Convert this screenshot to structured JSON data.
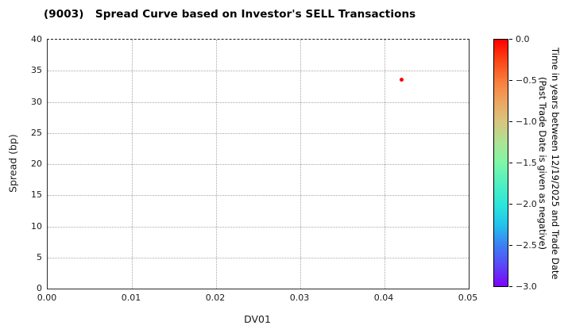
{
  "chart_data": {
    "type": "scatter",
    "title": "(9003)   Spread Curve based on Investor's SELL Transactions",
    "xlabel": "DV01",
    "ylabel": "Spread (bp)",
    "xlim": [
      0.0,
      0.05
    ],
    "ylim": [
      0,
      40
    ],
    "grid": true,
    "xticks": {
      "values": [
        0.0,
        0.01,
        0.02,
        0.03,
        0.04,
        0.05
      ],
      "labels": [
        "0.00",
        "0.01",
        "0.02",
        "0.03",
        "0.04",
        "0.05"
      ]
    },
    "yticks": {
      "values": [
        0,
        5,
        10,
        15,
        20,
        25,
        30,
        35,
        40
      ],
      "labels": [
        "0",
        "5",
        "10",
        "15",
        "20",
        "25",
        "30",
        "35",
        "40"
      ]
    },
    "points": [
      {
        "x": 0.042,
        "y": 33.6,
        "color": "#ff0000",
        "time_years": 0.0
      }
    ],
    "colorbar": {
      "label_line1": "Time in years between 12/19/2025 and Trade Date",
      "label_line2": "(Past Trade Date is given as negative)",
      "ticks": [
        "0.0",
        "−0.5",
        "−1.0",
        "−1.5",
        "−2.0",
        "−2.5",
        "−3.0"
      ],
      "vmax": 0.0,
      "vmin": -3.0,
      "colormap": "rainbow",
      "gradient": [
        {
          "pos": 0,
          "color": "#ff0000"
        },
        {
          "pos": 8,
          "color": "#fb4214"
        },
        {
          "pos": 17,
          "color": "#f97e3d"
        },
        {
          "pos": 25,
          "color": "#eda55f"
        },
        {
          "pos": 33,
          "color": "#d9c47f"
        },
        {
          "pos": 42,
          "color": "#abe495"
        },
        {
          "pos": 50,
          "color": "#7ef7a7"
        },
        {
          "pos": 58,
          "color": "#52f0c0"
        },
        {
          "pos": 67,
          "color": "#2ce6d9"
        },
        {
          "pos": 75,
          "color": "#22c4ec"
        },
        {
          "pos": 83,
          "color": "#3b82f4"
        },
        {
          "pos": 92,
          "color": "#5b45f7"
        },
        {
          "pos": 100,
          "color": "#7d03fa"
        }
      ]
    },
    "colors": {
      "point": "#ff0000",
      "grid": "#a8a8a8",
      "spine": "#2b2b2b",
      "text": "#1a1a1a"
    }
  }
}
